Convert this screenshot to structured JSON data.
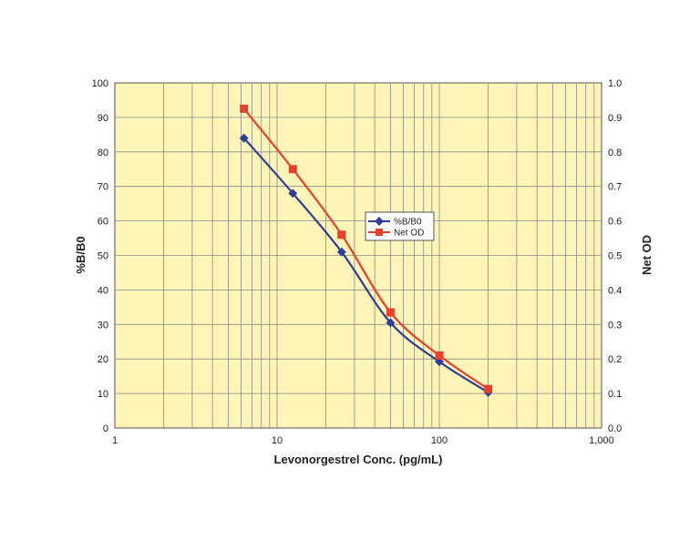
{
  "chart_data": {
    "type": "line",
    "title": "",
    "xlabel": "Levonorgestrel Conc. (pg/mL)",
    "ylabel": "%B/B0",
    "y2label": "Net OD",
    "xscale": "log",
    "xlim": [
      1,
      1000
    ],
    "ylim": [
      0,
      100
    ],
    "y2lim": [
      0.0,
      1.0
    ],
    "grid": true,
    "x_tick_labels": [
      "1",
      "10",
      "100",
      "1,000"
    ],
    "y_tick_labels": [
      "0",
      "10",
      "20",
      "30",
      "40",
      "50",
      "60",
      "70",
      "80",
      "90",
      "100"
    ],
    "y2_tick_labels": [
      "0.0",
      "0.1",
      "0.2",
      "0.3",
      "0.4",
      "0.5",
      "0.6",
      "0.7",
      "0.8",
      "0.9",
      "1.0"
    ],
    "x": [
      6.25,
      12.5,
      25,
      50,
      100,
      200
    ],
    "series": [
      {
        "name": "%B/B0",
        "axis": "left",
        "color": "#2e3d9a",
        "marker": "diamond",
        "values": [
          84,
          68,
          51,
          30.5,
          19.2,
          10.3
        ]
      },
      {
        "name": "Net OD",
        "axis": "right",
        "color": "#e8402a",
        "marker": "square",
        "values": [
          0.925,
          0.75,
          0.56,
          0.335,
          0.21,
          0.113
        ]
      }
    ],
    "legend_position": "center-right",
    "plot_background": "#fdf4b8",
    "grid_color": "#8a8a8a"
  }
}
